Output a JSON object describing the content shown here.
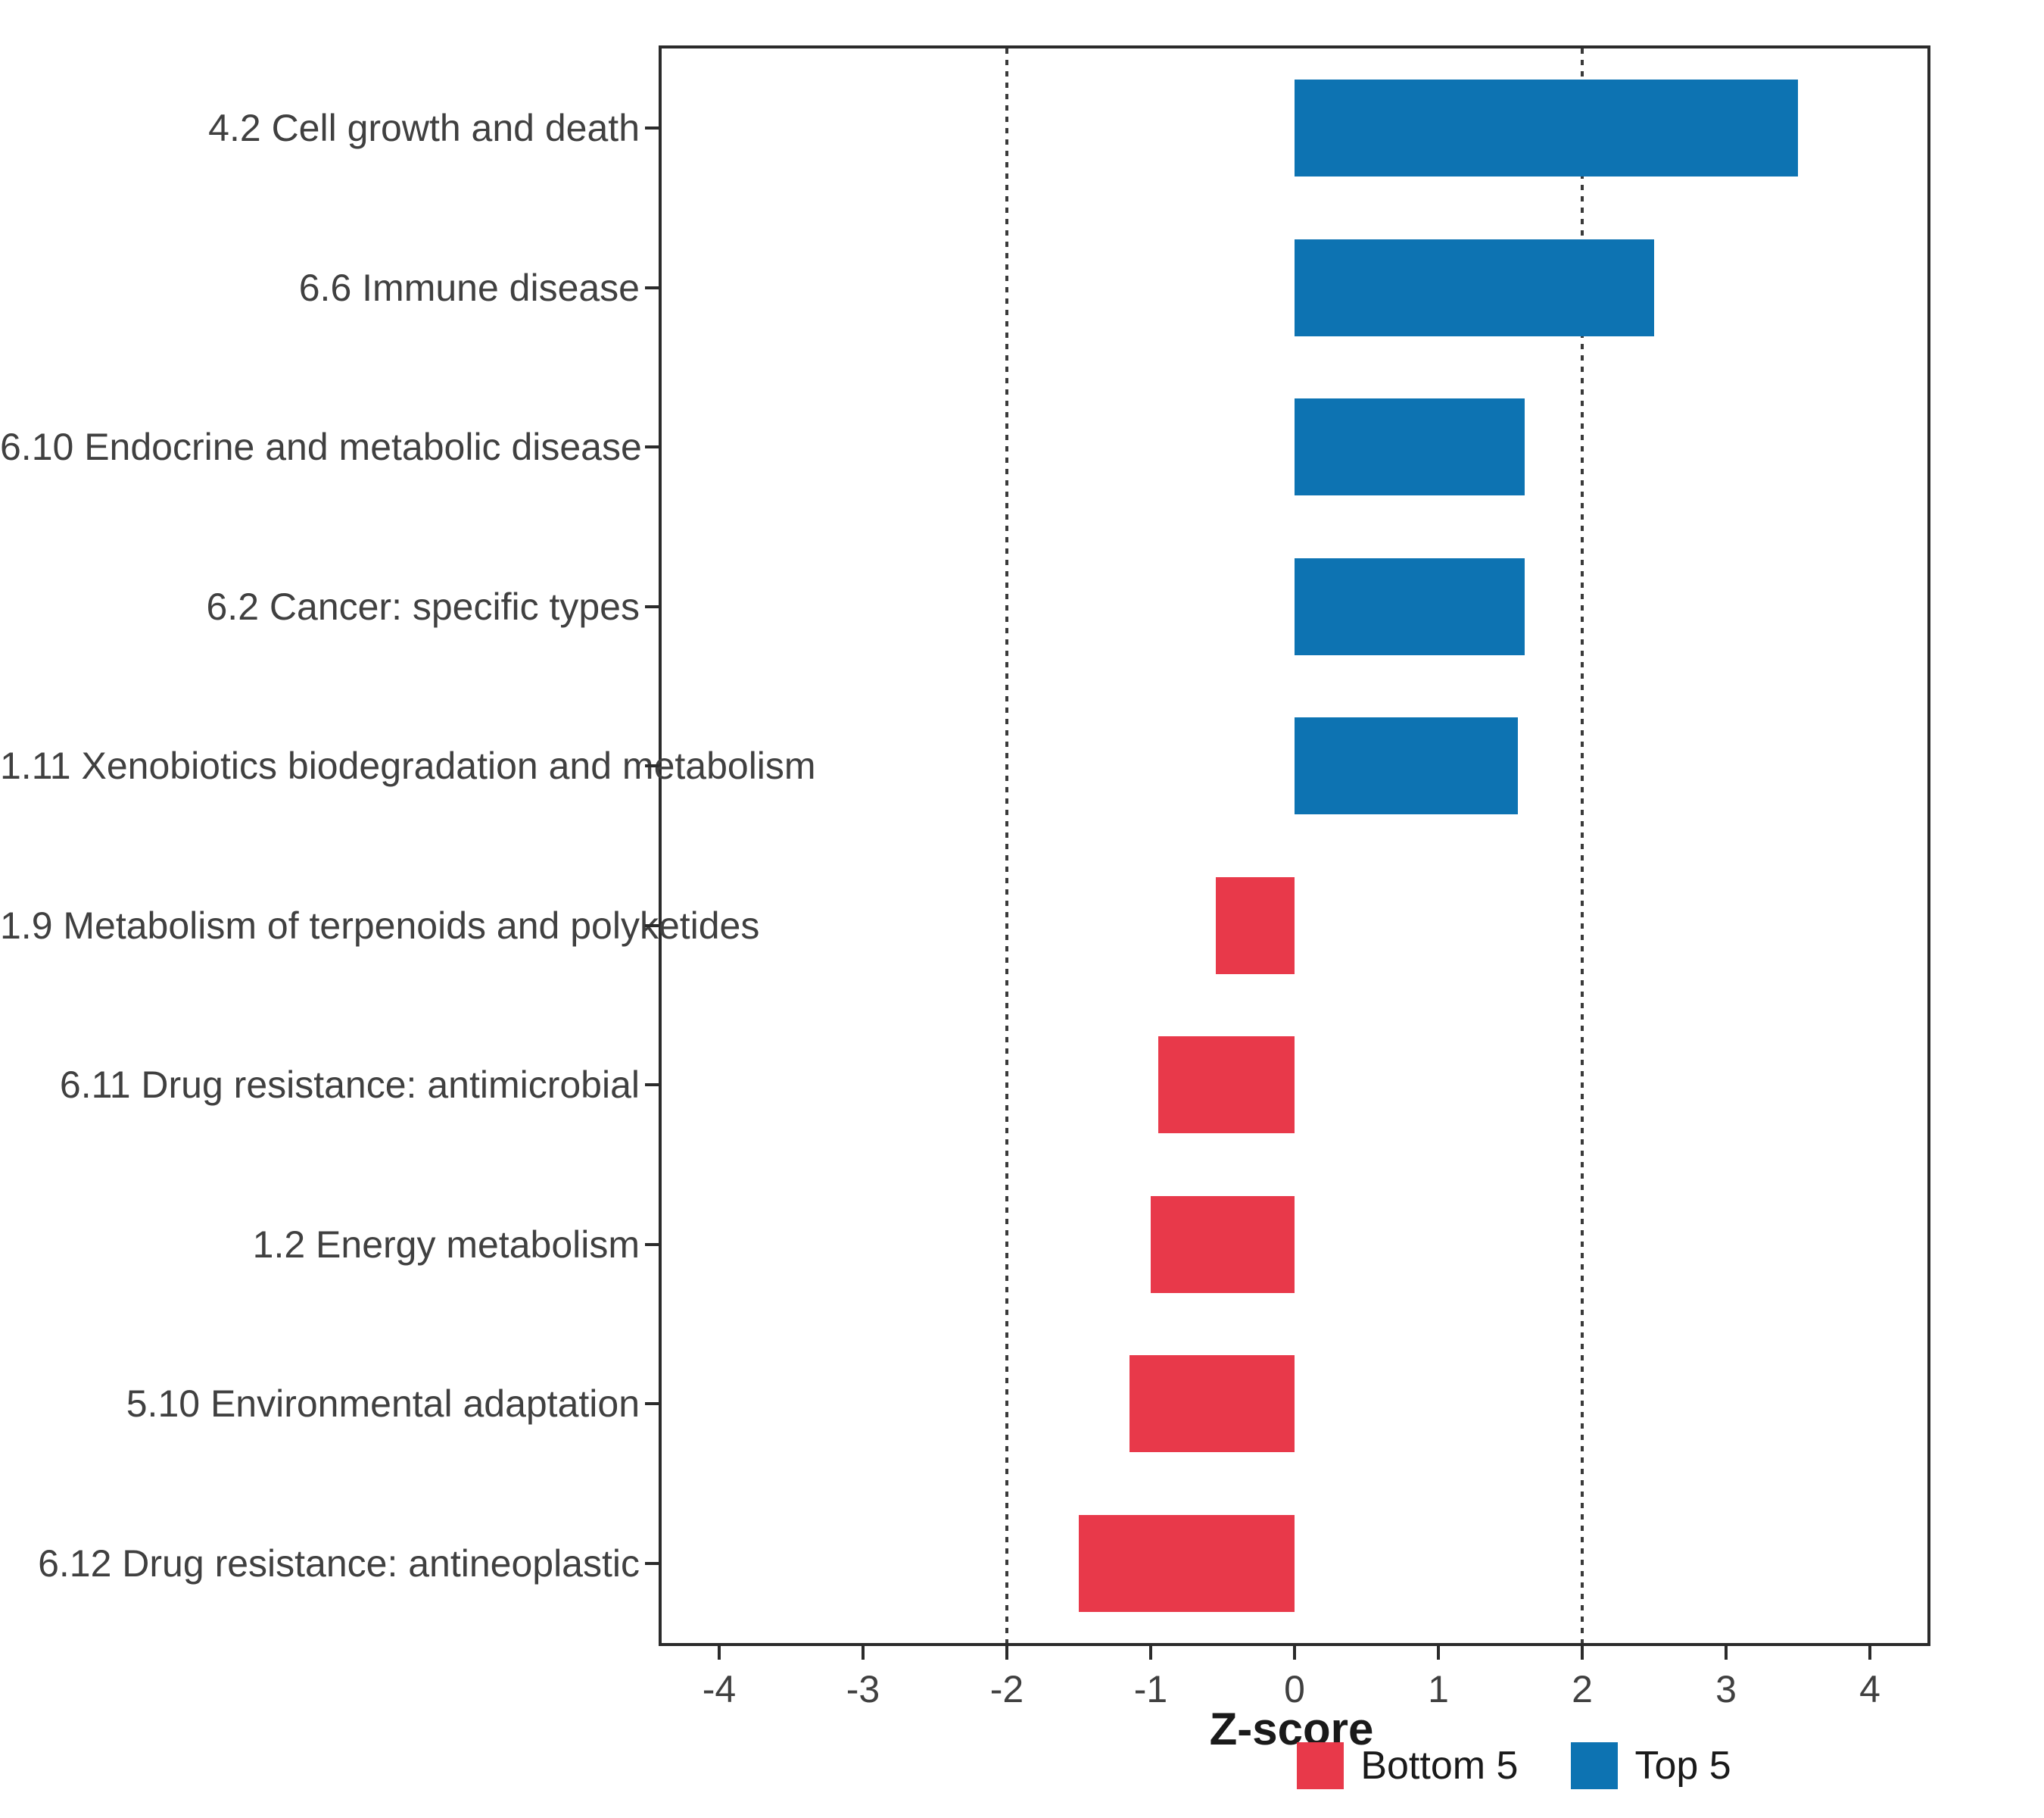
{
  "chart_data": {
    "type": "bar",
    "orientation": "horizontal",
    "title": "",
    "xlabel": "Z-score",
    "ylabel": "",
    "xlim": [
      -4.4,
      4.4
    ],
    "x_ticks": [
      -4,
      -3,
      -2,
      -1,
      0,
      1,
      2,
      3,
      4
    ],
    "reference_lines": [
      -2,
      2
    ],
    "grid": "off",
    "categories": [
      "4.2 Cell growth and death",
      "6.6 Immune disease",
      "6.10 Endocrine and metabolic disease",
      "6.2 Cancer: specific types",
      "1.11 Xenobiotics biodegradation and metabolism",
      "1.9 Metabolism of terpenoids and polyketides",
      "6.11 Drug resistance: antimicrobial",
      "1.2 Energy metabolism",
      "5.10 Environmental adaptation",
      "6.12 Drug resistance: antineoplastic"
    ],
    "values": [
      3.5,
      2.5,
      1.6,
      1.6,
      1.55,
      -0.55,
      -0.95,
      -1.0,
      -1.15,
      -1.5
    ],
    "groups": [
      "Top 5",
      "Top 5",
      "Top 5",
      "Top 5",
      "Top 5",
      "Bottom 5",
      "Bottom 5",
      "Bottom 5",
      "Bottom 5",
      "Bottom 5"
    ],
    "colors": {
      "Top 5": "#0d73b2",
      "Bottom 5": "#e8394a"
    },
    "legend": {
      "position": "bottom",
      "entries": [
        {
          "label": "Bottom 5",
          "color": "#e8394a"
        },
        {
          "label": "Top 5",
          "color": "#0d73b2"
        }
      ]
    }
  }
}
